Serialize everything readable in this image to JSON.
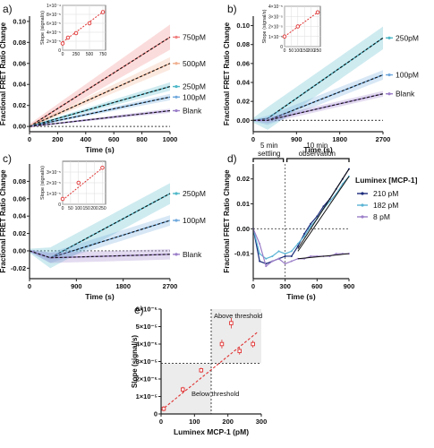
{
  "chart_data": [
    {
      "panel": "a)",
      "type": "line",
      "xlabel": "Time (s)",
      "ylabel": "Fractional FRET Ratio Change",
      "xlim": [
        0,
        1000
      ],
      "ylim": [
        -0.005,
        0.105
      ],
      "xticks": [
        0,
        200,
        400,
        600,
        800,
        1000
      ],
      "yticks": [
        0.0,
        0.02,
        0.04,
        0.06,
        0.08,
        0.1
      ],
      "ytick_labels": [
        "0.00",
        "0.02",
        "0.04",
        "0.06",
        "0.08",
        "0.10"
      ],
      "series": [
        {
          "name": "750pM",
          "color": "#f08080",
          "band": 0.012,
          "x": [
            0,
            1000
          ],
          "y": [
            0.0,
            0.085
          ]
        },
        {
          "name": "500pM",
          "color": "#f0b090",
          "band": 0.006,
          "x": [
            0,
            1000
          ],
          "y": [
            0.0,
            0.06
          ]
        },
        {
          "name": "250pM",
          "color": "#4fb8c8",
          "band": 0.004,
          "x": [
            0,
            1000
          ],
          "y": [
            0.0,
            0.038
          ]
        },
        {
          "name": "100pM",
          "color": "#6fa8dc",
          "band": 0.003,
          "x": [
            0,
            1000
          ],
          "y": [
            0.0,
            0.028
          ]
        },
        {
          "name": "Blank",
          "color": "#9b7ec8",
          "band": 0.002,
          "x": [
            0,
            1000
          ],
          "y": [
            0.0,
            0.015
          ]
        }
      ],
      "inset": {
        "ylabel": "Slope (signal/s)",
        "xlim": [
          0,
          800
        ],
        "ylim": [
          0,
          0.0001
        ],
        "xticks": [
          0,
          250,
          500,
          750
        ],
        "yticks": [
          0,
          2e-05,
          4e-05,
          6e-05,
          8e-05,
          0.0001
        ],
        "ytick_labels": [
          "0",
          "2×10⁻⁵",
          "4×10⁻⁵",
          "6×10⁻⁵",
          "8×10⁻⁵",
          "1×10⁻⁴"
        ],
        "points": [
          {
            "x": 0,
            "y": 1.5e-05
          },
          {
            "x": 100,
            "y": 2.8e-05
          },
          {
            "x": 250,
            "y": 3.8e-05
          },
          {
            "x": 500,
            "y": 6e-05
          },
          {
            "x": 750,
            "y": 8.5e-05
          }
        ],
        "fit": [
          [
            0,
            1.8e-05
          ],
          [
            800,
            9e-05
          ]
        ]
      }
    },
    {
      "panel": "b)",
      "type": "line",
      "xlabel": "Time (s)",
      "ylabel": "Fractional FRET Ratio Change",
      "xlim": [
        0,
        2700
      ],
      "ylim": [
        -0.012,
        0.11
      ],
      "xticks": [
        0,
        900,
        1800,
        2700
      ],
      "yticks": [
        0.0,
        0.02,
        0.04,
        0.06,
        0.08,
        0.1
      ],
      "ytick_labels": [
        "0.00",
        "0.02",
        "0.04",
        "0.06",
        "0.08",
        "0.10"
      ],
      "series": [
        {
          "name": "250pM",
          "color": "#4fb8c8",
          "band": 0.012,
          "x": [
            0,
            300,
            2700
          ],
          "y": [
            0.0,
            0.002,
            0.087
          ]
        },
        {
          "name": "100pM",
          "color": "#6fa8dc",
          "band": 0.005,
          "x": [
            0,
            300,
            2700
          ],
          "y": [
            0.0,
            0.0,
            0.048
          ]
        },
        {
          "name": "Blank",
          "color": "#9b7ec8",
          "band": 0.003,
          "x": [
            0,
            300,
            2700
          ],
          "y": [
            0.0,
            0.0,
            0.028
          ]
        }
      ],
      "inset": {
        "ylabel": "Slope (signal/s)",
        "xlim": [
          0,
          270
        ],
        "ylim": [
          0,
          4e-05
        ],
        "xticks": [
          0,
          50,
          100,
          150,
          200,
          250
        ],
        "yticks": [
          0,
          1e-05,
          2e-05,
          3e-05,
          4e-05
        ],
        "ytick_labels": [
          "0",
          "1×10⁻⁵",
          "2×10⁻⁵",
          "3×10⁻⁵",
          "4×10⁻⁵"
        ],
        "points": [
          {
            "x": 0,
            "y": 1e-05
          },
          {
            "x": 100,
            "y": 2e-05
          },
          {
            "x": 250,
            "y": 3.4e-05
          }
        ],
        "fit": [
          [
            0,
            1e-05
          ],
          [
            260,
            3.5e-05
          ]
        ]
      }
    },
    {
      "panel": "c)",
      "type": "line",
      "xlabel": "Time (s)",
      "ylabel": "Fractional FRET Ratio Change",
      "xlim": [
        0,
        2700
      ],
      "ylim": [
        -0.032,
        0.1
      ],
      "xticks": [
        0,
        900,
        1800,
        2700
      ],
      "yticks": [
        -0.02,
        0.0,
        0.02,
        0.04,
        0.06,
        0.08
      ],
      "ytick_labels": [
        "-0.02",
        "0.00",
        "0.02",
        "0.04",
        "0.06",
        "0.08"
      ],
      "series": [
        {
          "name": "250pM",
          "color": "#4fb8c8",
          "band": 0.012,
          "x": [
            0,
            400,
            2700
          ],
          "y": [
            0.0,
            -0.008,
            0.066
          ]
        },
        {
          "name": "100pM",
          "color": "#6fa8dc",
          "band": 0.006,
          "x": [
            0,
            400,
            2700
          ],
          "y": [
            0.0,
            -0.008,
            0.035
          ]
        },
        {
          "name": "Blank",
          "color": "#9b7ec8",
          "band": 0.006,
          "x": [
            0,
            400,
            2700
          ],
          "y": [
            0.0,
            -0.008,
            -0.004
          ]
        }
      ],
      "inset": {
        "ylabel": "Slope (signal/s)",
        "xlim": [
          0,
          270
        ],
        "ylim": [
          0,
          4e-05
        ],
        "xticks": [
          0,
          50,
          100,
          150,
          200,
          250
        ],
        "yticks": [
          0,
          1e-05,
          2e-05,
          3e-05
        ],
        "ytick_labels": [
          "0",
          "1×10⁻⁵",
          "2×10⁻⁵",
          "3×10⁻⁵"
        ],
        "points": [
          {
            "x": 0,
            "y": 5e-06
          },
          {
            "x": 100,
            "y": 2e-05
          },
          {
            "x": 250,
            "y": 3.4e-05
          }
        ],
        "fit": [
          [
            0,
            4e-06
          ],
          [
            260,
            3.5e-05
          ]
        ]
      }
    },
    {
      "panel": "d)",
      "type": "line",
      "xlabel": "Time (s)",
      "ylabel": "Fractional FRET Ratio Change",
      "xlim": [
        0,
        900
      ],
      "ylim": [
        -0.02,
        0.026
      ],
      "xticks": [
        0,
        300,
        600,
        900
      ],
      "yticks": [
        -0.01,
        0.0,
        0.01,
        0.02
      ],
      "ytick_labels": [
        "-0.01",
        "0.00",
        "0.01",
        "0.02"
      ],
      "annotations": [
        "5 min settling",
        "10 min observation"
      ],
      "annotation_lines": [
        [
          "5 min",
          "settling"
        ],
        [
          "10 min",
          "observation"
        ]
      ],
      "legend_title": "Luminex [MCP-1]",
      "series": [
        {
          "name": "210 pM",
          "color": "#1a2a7a",
          "x": [
            0,
            60,
            120,
            180,
            240,
            300,
            360,
            420,
            480,
            540,
            600,
            660,
            720,
            780,
            840,
            900
          ],
          "y": [
            0.0,
            -0.013,
            -0.014,
            -0.013,
            -0.012,
            -0.011,
            -0.011,
            -0.007,
            -0.002,
            0.002,
            0.005,
            0.009,
            0.012,
            0.016,
            0.02,
            0.024
          ]
        },
        {
          "name": "182 pM",
          "color": "#5ab4d4",
          "x": [
            0,
            60,
            120,
            180,
            240,
            300,
            360,
            420,
            480,
            540,
            600,
            660,
            720,
            780,
            840,
            900
          ],
          "y": [
            0.0,
            -0.01,
            -0.012,
            -0.011,
            -0.009,
            -0.01,
            -0.009,
            -0.006,
            -0.003,
            0.001,
            0.004,
            0.008,
            0.011,
            0.014,
            0.018,
            0.021
          ]
        },
        {
          "name": "8 pM",
          "color": "#9b7ec8",
          "x": [
            0,
            60,
            120,
            180,
            240,
            300,
            360,
            420,
            480,
            540,
            600,
            660,
            720,
            780,
            840,
            900
          ],
          "y": [
            0.0,
            -0.006,
            -0.015,
            -0.013,
            -0.012,
            -0.014,
            -0.013,
            -0.012,
            -0.012,
            -0.011,
            -0.011,
            -0.011,
            -0.011,
            -0.01,
            -0.01,
            -0.01
          ]
        }
      ],
      "fits": [
        {
          "color": "#111111",
          "x": [
            420,
            900
          ],
          "y": [
            -0.008,
            0.024
          ]
        },
        {
          "color": "#111111",
          "x": [
            420,
            900
          ],
          "y": [
            -0.009,
            0.021
          ]
        },
        {
          "color": "#111111",
          "x": [
            420,
            900
          ],
          "y": [
            -0.012,
            -0.01
          ]
        }
      ]
    },
    {
      "panel": "e)",
      "type": "scatter",
      "xlabel": "Luminex MCP-1 (pM)",
      "ylabel": "Slope (signal/s)",
      "xlim": [
        0,
        300
      ],
      "ylim": [
        0,
        6e-05
      ],
      "xticks": [
        0,
        100,
        200,
        300
      ],
      "yticks": [
        0,
        1e-05,
        2e-05,
        3e-05,
        4e-05,
        5e-05,
        6e-05
      ],
      "ytick_labels": [
        "0",
        "1×10⁻⁵",
        "2×10⁻⁵",
        "3×10⁻⁵",
        "4×10⁻⁵",
        "5×10⁻⁵",
        "6×10⁻⁵"
      ],
      "threshold_x": 150,
      "threshold_y": 2.9e-05,
      "region_labels": [
        "Above threshold",
        "Below threshold"
      ],
      "points": [
        {
          "x": 8,
          "y": 3e-06,
          "err": 1.5e-06
        },
        {
          "x": 65,
          "y": 1.4e-05,
          "err": 1.5e-06
        },
        {
          "x": 120,
          "y": 2.5e-05,
          "err": 1.5e-06
        },
        {
          "x": 182,
          "y": 4e-05,
          "err": 2.5e-06
        },
        {
          "x": 210,
          "y": 5.2e-05,
          "err": 3e-06
        },
        {
          "x": 235,
          "y": 3.6e-05,
          "err": 2e-06
        },
        {
          "x": 275,
          "y": 4e-05,
          "err": 2e-06
        }
      ],
      "fit": [
        [
          0,
          2e-06
        ],
        [
          290,
          4.7e-05
        ]
      ]
    }
  ]
}
